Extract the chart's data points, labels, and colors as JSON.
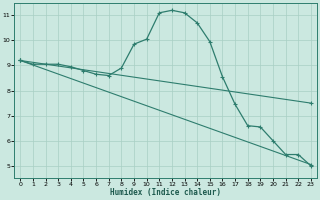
{
  "xlabel": "Humidex (Indice chaleur)",
  "bg_color": "#cbe8e0",
  "grid_color": "#a8cfc4",
  "line_color": "#2e7d6e",
  "xlim": [
    -0.5,
    23.5
  ],
  "ylim": [
    4.5,
    11.5
  ],
  "xticks": [
    0,
    1,
    2,
    3,
    4,
    5,
    6,
    7,
    8,
    9,
    10,
    11,
    12,
    13,
    14,
    15,
    16,
    17,
    18,
    19,
    20,
    21,
    22,
    23
  ],
  "yticks": [
    5,
    6,
    7,
    8,
    9,
    10,
    11
  ],
  "line1_x": [
    0,
    1,
    2,
    3,
    4,
    5,
    6,
    7,
    8,
    9,
    10,
    11,
    12,
    13,
    14,
    15,
    16,
    17,
    18,
    19,
    20,
    21,
    22,
    23
  ],
  "line1_y": [
    9.2,
    9.05,
    9.05,
    9.05,
    8.95,
    8.8,
    8.65,
    8.6,
    8.9,
    9.85,
    10.05,
    11.1,
    11.2,
    11.1,
    10.7,
    9.95,
    8.55,
    7.45,
    6.6,
    6.55,
    6.0,
    5.45,
    5.45,
    5.0
  ],
  "line2_x": [
    0,
    23
  ],
  "line2_y": [
    9.2,
    7.5
  ],
  "line3_x": [
    0,
    23
  ],
  "line3_y": [
    9.2,
    5.05
  ]
}
